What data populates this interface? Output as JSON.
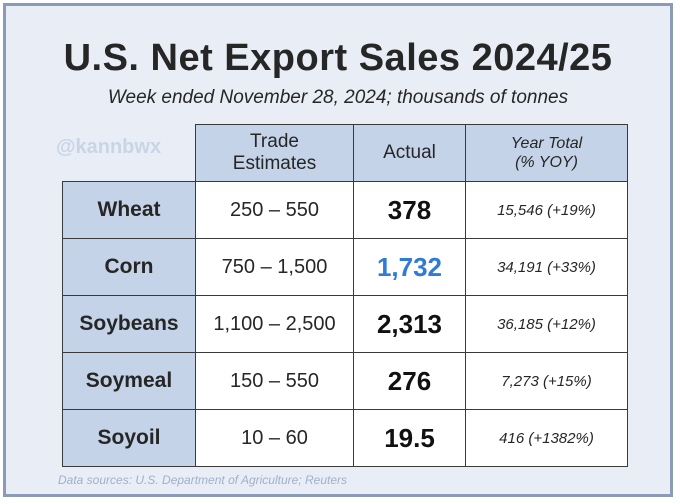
{
  "title": "U.S. Net Export Sales 2024/25",
  "subtitle": "Week ended November 28, 2024; thousands of tonnes",
  "watermark": "@kannbwx",
  "source": "Data sources: U.S. Department of Agriculture; Reuters",
  "colors": {
    "background": "#e9eef6",
    "header_fill": "#c4d3e8",
    "highlight": "#2f7bd6"
  },
  "chart_data": {
    "type": "table",
    "title": "U.S. Net Export Sales 2024/25",
    "subtitle": "Week ended November 28, 2024; thousands of tonnes",
    "columns": [
      "Trade Estimates",
      "Actual",
      "Year Total (% YOY)"
    ],
    "header": {
      "trade_line1": "Trade",
      "trade_line2": "Estimates",
      "actual": "Actual",
      "year_line1": "Year Total",
      "year_line2": "(% YOY)"
    },
    "rows": [
      {
        "commodity": "Wheat",
        "estimate": "250 – 550",
        "actual": "378",
        "year_total": "15,546 (+19%)",
        "highlight": false
      },
      {
        "commodity": "Corn",
        "estimate": "750 – 1,500",
        "actual": "1,732",
        "year_total": "34,191 (+33%)",
        "highlight": true
      },
      {
        "commodity": "Soybeans",
        "estimate": "1,100 – 2,500",
        "actual": "2,313",
        "year_total": "36,185 (+12%)",
        "highlight": false
      },
      {
        "commodity": "Soymeal",
        "estimate": "150 – 550",
        "actual": "276",
        "year_total": "7,273 (+15%)",
        "highlight": false
      },
      {
        "commodity": "Soyoil",
        "estimate": "10 – 60",
        "actual": "19.5",
        "year_total": "416 (+1382%)",
        "highlight": false
      }
    ]
  }
}
